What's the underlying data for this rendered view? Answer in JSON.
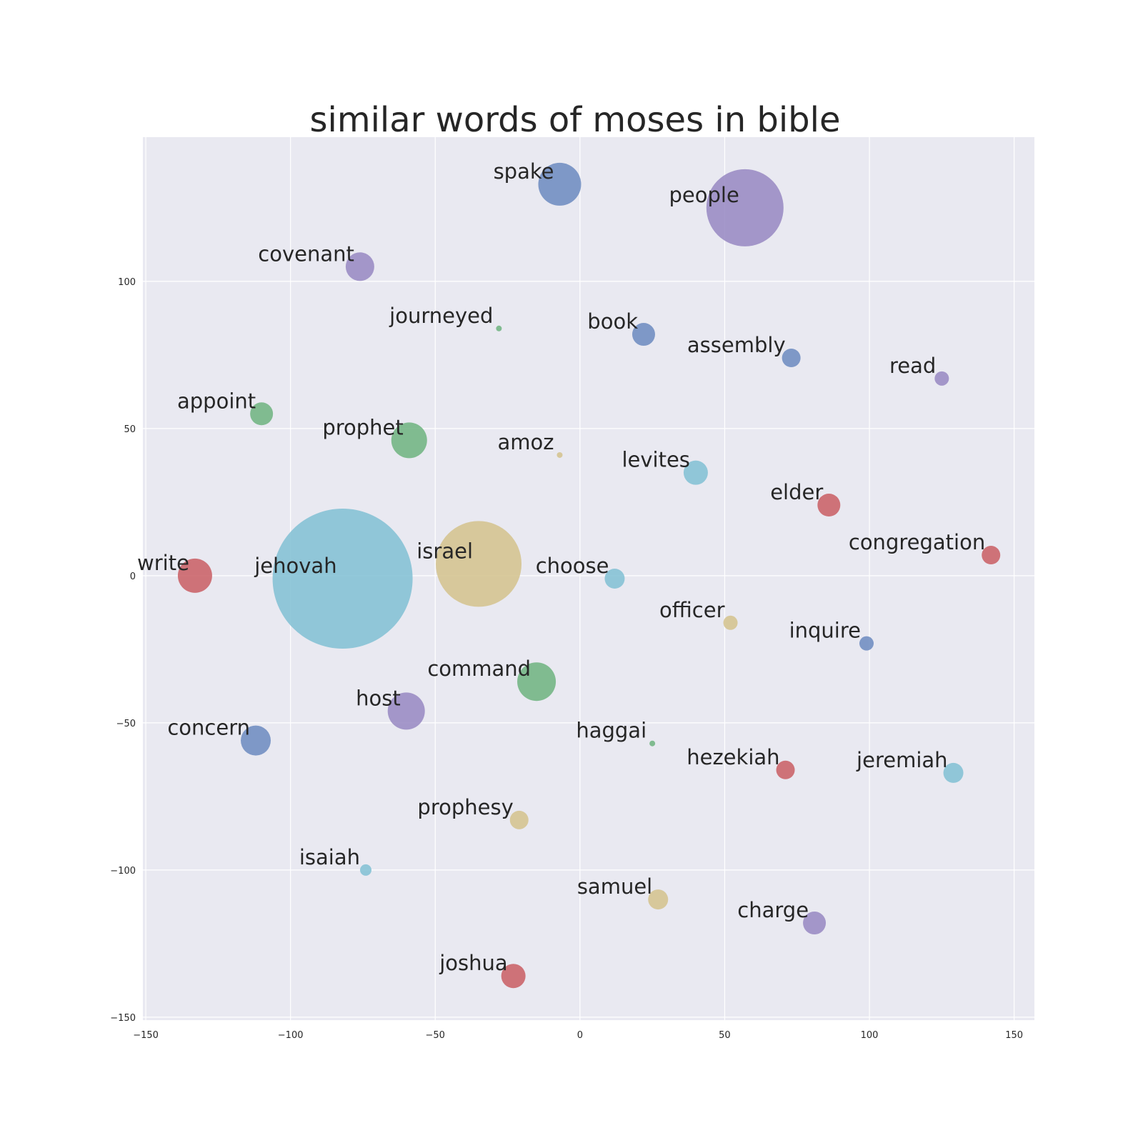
{
  "chart_data": {
    "type": "scatter",
    "title": "similar words of moses in bible",
    "xlabel": "",
    "ylabel": "",
    "xlim": [
      -151,
      157
    ],
    "ylim": [
      -151,
      149
    ],
    "grid": true,
    "xticks": [
      -150,
      -100,
      -50,
      0,
      50,
      100,
      150
    ],
    "yticks": [
      100,
      50,
      0,
      -50,
      -100,
      -150
    ],
    "xtick_labels": [
      "−150",
      "−100",
      "−50",
      "0",
      "50",
      "100",
      "150"
    ],
    "ytick_labels": [
      "100",
      "50",
      "0",
      "−50",
      "−100",
      "−150"
    ],
    "colors": {
      "blue": "#6b89c0",
      "purple": "#9687c2",
      "green": "#6db37f",
      "cyan": "#80bfd4",
      "gold": "#d3c28c",
      "red": "#c95d63"
    },
    "points": [
      {
        "label": "spake",
        "x": -7,
        "y": 133,
        "r": 30,
        "color": "blue"
      },
      {
        "label": "people",
        "x": 57,
        "y": 125,
        "r": 54,
        "color": "purple"
      },
      {
        "label": "covenant",
        "x": -76,
        "y": 105,
        "r": 20,
        "color": "purple"
      },
      {
        "label": "journeyed",
        "x": -28,
        "y": 84,
        "r": 4,
        "color": "green"
      },
      {
        "label": "book",
        "x": 22,
        "y": 82,
        "r": 16,
        "color": "blue"
      },
      {
        "label": "assembly",
        "x": 73,
        "y": 74,
        "r": 13,
        "color": "blue"
      },
      {
        "label": "read",
        "x": 125,
        "y": 67,
        "r": 10,
        "color": "purple"
      },
      {
        "label": "appoint",
        "x": -110,
        "y": 55,
        "r": 16,
        "color": "green"
      },
      {
        "label": "prophet",
        "x": -59,
        "y": 46,
        "r": 25,
        "color": "green"
      },
      {
        "label": "amoz",
        "x": -7,
        "y": 41,
        "r": 4,
        "color": "gold"
      },
      {
        "label": "levites",
        "x": 40,
        "y": 35,
        "r": 17,
        "color": "cyan"
      },
      {
        "label": "elder",
        "x": 86,
        "y": 24,
        "r": 16,
        "color": "red"
      },
      {
        "label": "congregation",
        "x": 142,
        "y": 7,
        "r": 13,
        "color": "red"
      },
      {
        "label": "write",
        "x": -133,
        "y": 0,
        "r": 24,
        "color": "red"
      },
      {
        "label": "jehovah",
        "x": -82,
        "y": -1,
        "r": 98,
        "color": "cyan"
      },
      {
        "label": "israel",
        "x": -35,
        "y": 4,
        "r": 60,
        "color": "gold"
      },
      {
        "label": "choose",
        "x": 12,
        "y": -1,
        "r": 14,
        "color": "cyan"
      },
      {
        "label": "officer",
        "x": 52,
        "y": -16,
        "r": 10,
        "color": "gold"
      },
      {
        "label": "inquire",
        "x": 99,
        "y": -23,
        "r": 10,
        "color": "blue"
      },
      {
        "label": "command",
        "x": -15,
        "y": -36,
        "r": 27,
        "color": "green"
      },
      {
        "label": "host",
        "x": -60,
        "y": -46,
        "r": 26,
        "color": "purple"
      },
      {
        "label": "concern",
        "x": -112,
        "y": -56,
        "r": 21,
        "color": "blue"
      },
      {
        "label": "haggai",
        "x": 25,
        "y": -57,
        "r": 4,
        "color": "green"
      },
      {
        "label": "hezekiah",
        "x": 71,
        "y": -66,
        "r": 13,
        "color": "red"
      },
      {
        "label": "jeremiah",
        "x": 129,
        "y": -67,
        "r": 14,
        "color": "cyan"
      },
      {
        "label": "prophesy",
        "x": -21,
        "y": -83,
        "r": 13,
        "color": "gold"
      },
      {
        "label": "isaiah",
        "x": -74,
        "y": -100,
        "r": 8,
        "color": "cyan"
      },
      {
        "label": "samuel",
        "x": 27,
        "y": -110,
        "r": 14,
        "color": "gold"
      },
      {
        "label": "charge",
        "x": 81,
        "y": -118,
        "r": 16,
        "color": "purple"
      },
      {
        "label": "joshua",
        "x": -23,
        "y": -136,
        "r": 17,
        "color": "red"
      }
    ]
  }
}
